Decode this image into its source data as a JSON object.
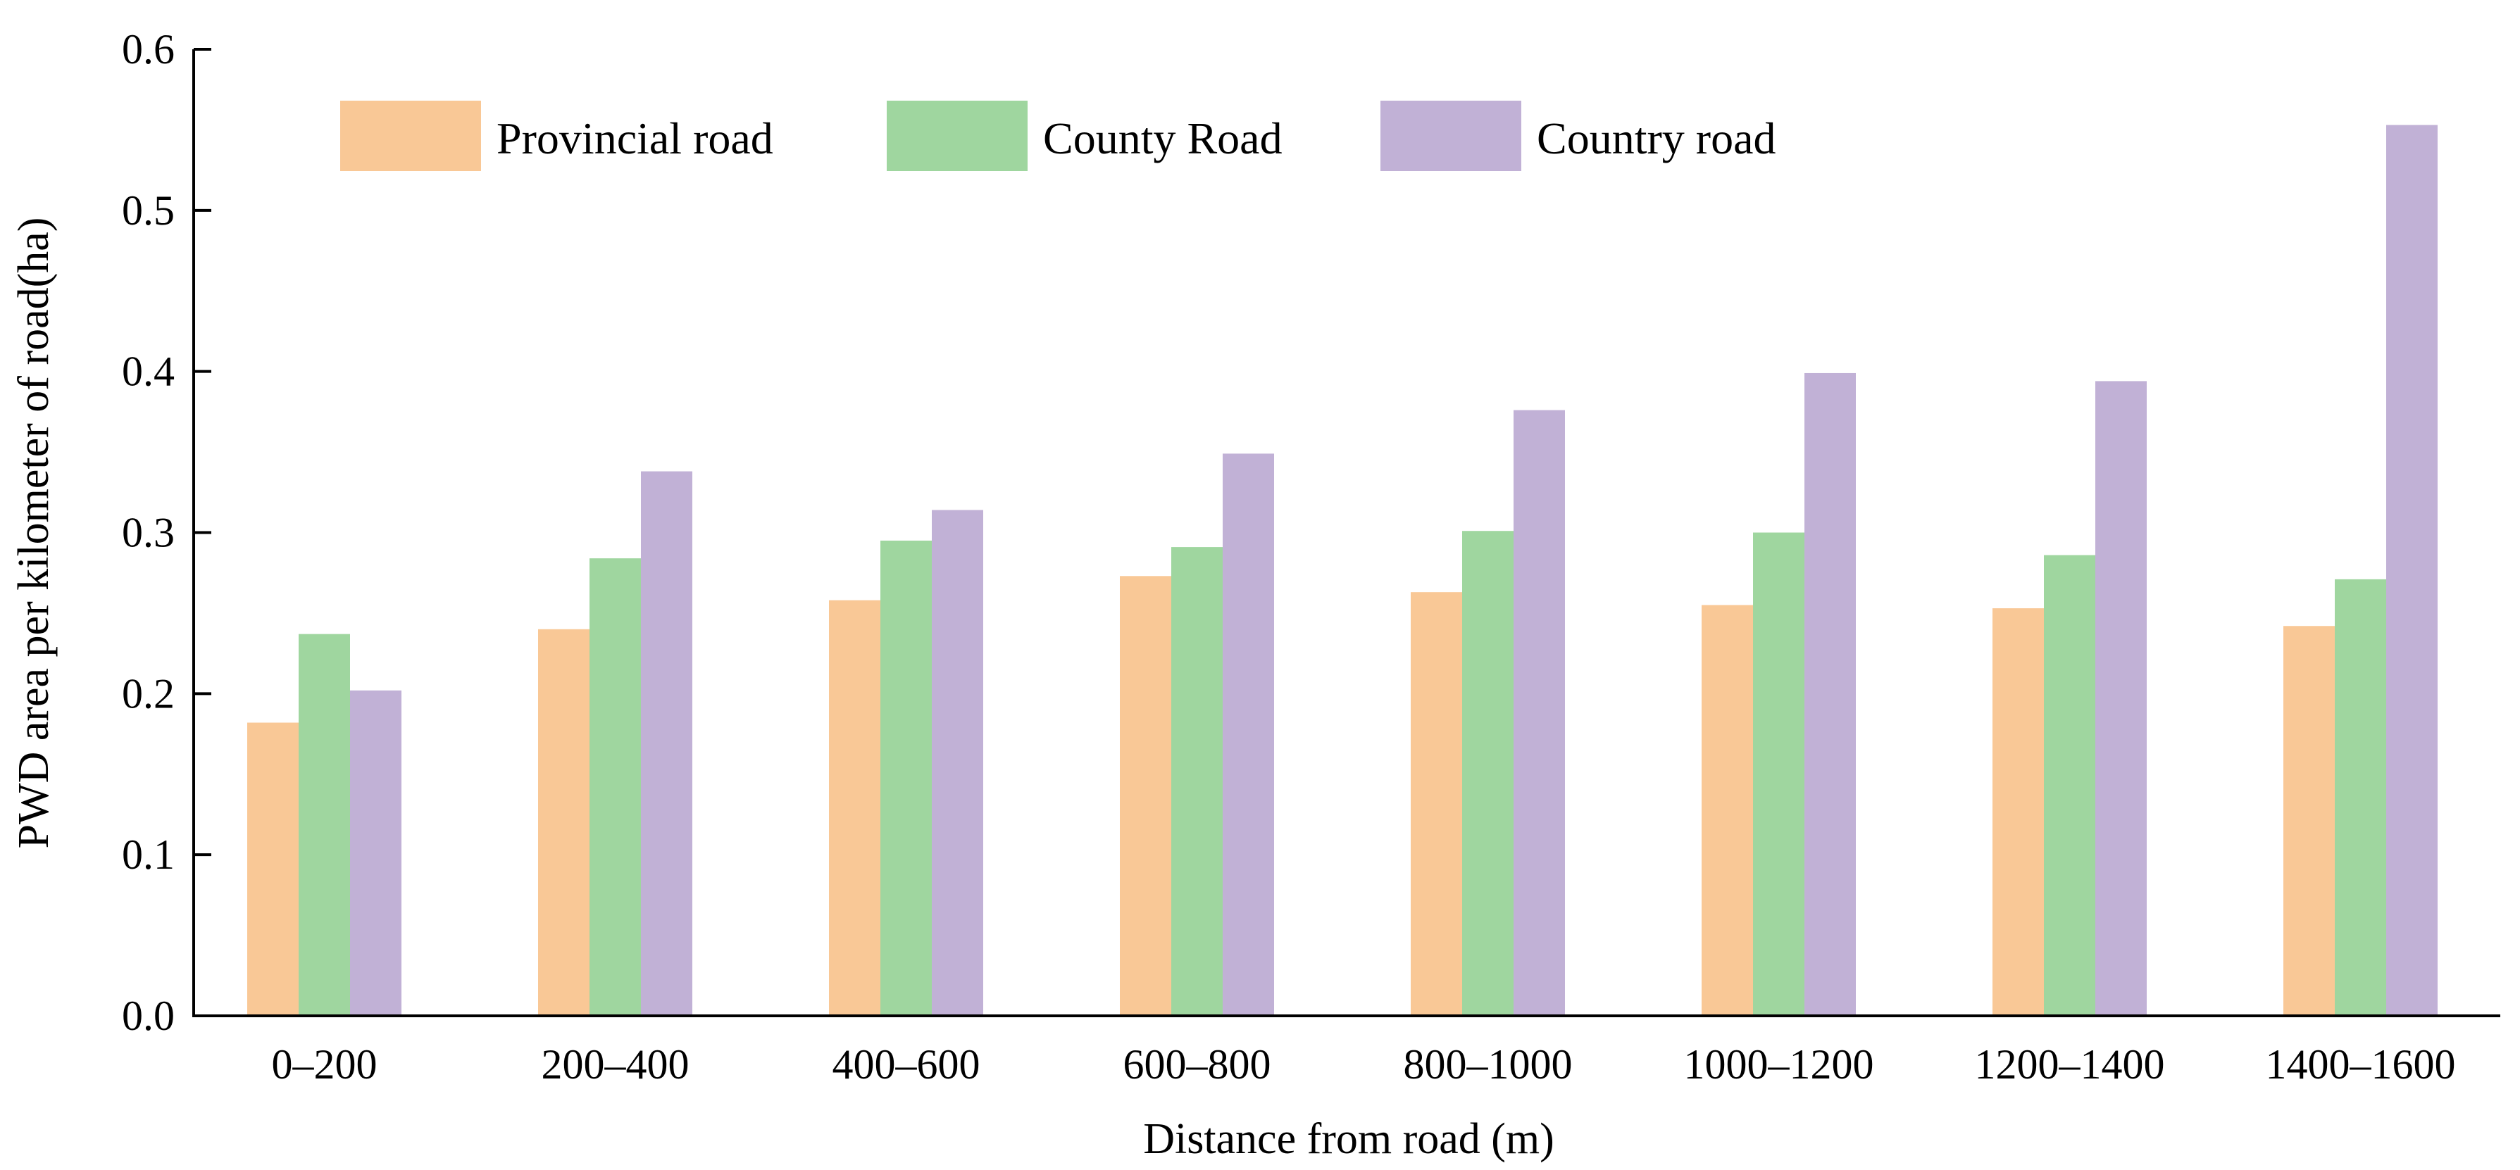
{
  "chart_data": {
    "type": "bar",
    "title": "",
    "xlabel": "Distance from road (m)",
    "ylabel": "PWD area per kilometer of road(ha)",
    "ylim": [
      0.0,
      0.6
    ],
    "yticks": [
      "0.0",
      "0.1",
      "0.2",
      "0.3",
      "0.4",
      "0.5",
      "0.6"
    ],
    "grid": false,
    "legend_position": "top",
    "categories": [
      "0–200",
      "200–400",
      "400–600",
      "600–800",
      "800–1000",
      "1000–1200",
      "1200–1400",
      "1400–1600"
    ],
    "series": [
      {
        "name": "Provincial road",
        "color": "#F9C896",
        "values": [
          0.182,
          0.24,
          0.258,
          0.273,
          0.263,
          0.255,
          0.253,
          0.242
        ]
      },
      {
        "name": "County Road",
        "color": "#9FD69F",
        "values": [
          0.237,
          0.284,
          0.295,
          0.291,
          0.301,
          0.3,
          0.286,
          0.271
        ]
      },
      {
        "name": "Country road",
        "color": "#C1B1D6",
        "values": [
          0.202,
          0.338,
          0.314,
          0.349,
          0.376,
          0.399,
          0.394,
          0.553
        ]
      }
    ]
  }
}
